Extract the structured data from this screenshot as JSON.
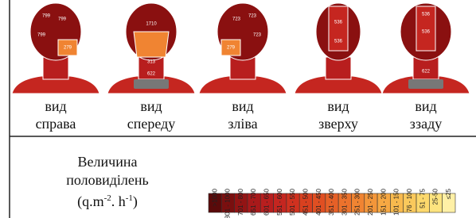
{
  "views": [
    {
      "label": [
        "вид",
        "справа"
      ],
      "regions": [
        "799",
        "799",
        "799",
        "279"
      ]
    },
    {
      "label": [
        "вид",
        "спереду"
      ],
      "regions": [
        "1710",
        "313",
        "622"
      ]
    },
    {
      "label": [
        "вид",
        "зліва"
      ],
      "regions": [
        "723",
        "723",
        "723",
        "279"
      ]
    },
    {
      "label": [
        "вид",
        "зверху"
      ],
      "regions": [
        "536",
        "536"
      ]
    },
    {
      "label": [
        "вид",
        "ззаду"
      ],
      "regions": [
        "536",
        "536",
        "622"
      ]
    }
  ],
  "legend": {
    "title": [
      "Величина",
      "половиділень"
    ],
    "unit": {
      "open": "(q.m",
      "exp1": "-2",
      "mid": ". h",
      "exp2": "-1",
      "close": ")"
    },
    "bins": [
      ">1000",
      "801 - 1000",
      "701 - 800",
      "651 - 700",
      "601 - 650",
      "551 - 600",
      "501 - 550",
      "451 - 500",
      "401 - 450",
      "351 - 400",
      "301 - 350",
      "251 - 300",
      "201 - 250",
      "151 - 200",
      "101 - 150",
      "76 - 100",
      "51 - 75",
      "25-50",
      "≤25"
    ],
    "colors": [
      "#5a0a0a",
      "#7a0f0f",
      "#931414",
      "#a8191a",
      "#b81e1e",
      "#c52620",
      "#d0311f",
      "#d9401f",
      "#e04f22",
      "#e66027",
      "#ec722c",
      "#f08432",
      "#f3963a",
      "#f6a843",
      "#f8ba4e",
      "#fac95c",
      "#fcd86c",
      "#fde47f",
      "#fff0a6"
    ]
  }
}
